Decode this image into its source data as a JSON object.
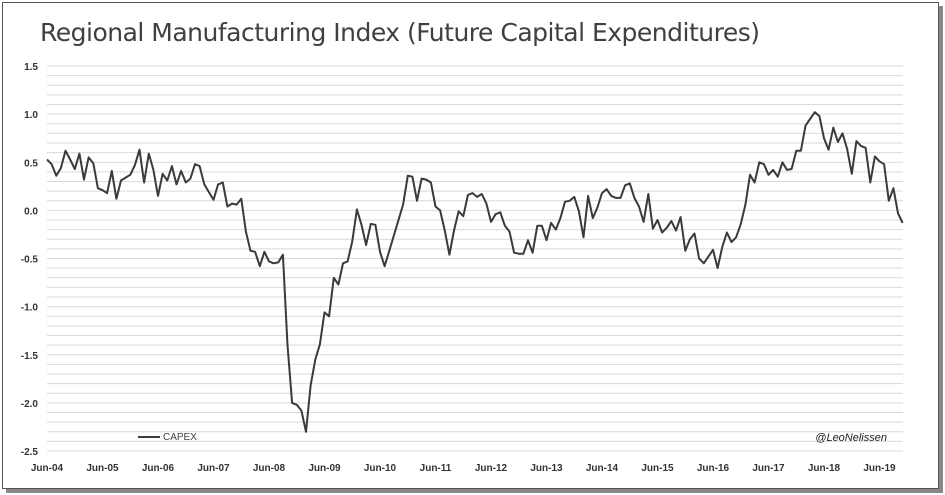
{
  "title": "Regional Manufacturing Index (Future Capital Expenditures)",
  "watermark": "@LeoNelissen",
  "colors": {
    "line": "#3a3a3a",
    "grid": "#d9d9d9"
  },
  "chart_data": {
    "type": "line",
    "title": "Regional Manufacturing Index (Future Capital Expenditures)",
    "xlabel": "",
    "ylabel": "",
    "ylim": [
      -2.5,
      1.5
    ],
    "yticks": [
      "1.5",
      "1.0",
      "0.5",
      "0.0",
      "-0.5",
      "-1.0",
      "-1.5",
      "-2.0",
      "-2.5"
    ],
    "ytick_values": [
      1.5,
      1.0,
      0.5,
      0.0,
      -0.5,
      -1.0,
      -1.5,
      -2.0,
      -2.5
    ],
    "xticks": [
      "Jun-04",
      "Jun-05",
      "Jun-06",
      "Jun-07",
      "Jun-08",
      "Jun-09",
      "Jun-10",
      "Jun-11",
      "Jun-12",
      "Jun-13",
      "Jun-14",
      "Jun-15",
      "Jun-16",
      "Jun-17",
      "Jun-18",
      "Jun-19"
    ],
    "grid": true,
    "legend": "bottom-left",
    "x_start": "Jun-04",
    "series": [
      {
        "name": "CAPEX",
        "values": [
          0.53,
          0.48,
          0.36,
          0.44,
          0.62,
          0.53,
          0.43,
          0.59,
          0.32,
          0.55,
          0.49,
          0.23,
          0.21,
          0.18,
          0.41,
          0.12,
          0.31,
          0.34,
          0.37,
          0.47,
          0.63,
          0.29,
          0.59,
          0.42,
          0.15,
          0.38,
          0.31,
          0.46,
          0.27,
          0.41,
          0.29,
          0.33,
          0.48,
          0.46,
          0.27,
          0.19,
          0.11,
          0.27,
          0.29,
          0.04,
          0.07,
          0.06,
          0.12,
          -0.22,
          -0.42,
          -0.43,
          -0.58,
          -0.43,
          -0.53,
          -0.55,
          -0.54,
          -0.46,
          -1.4,
          -2.0,
          -2.02,
          -2.08,
          -2.3,
          -1.82,
          -1.55,
          -1.39,
          -1.06,
          -1.1,
          -0.7,
          -0.77,
          -0.55,
          -0.53,
          -0.32,
          0.01,
          -0.15,
          -0.36,
          -0.14,
          -0.15,
          -0.43,
          -0.58,
          -0.42,
          -0.26,
          -0.1,
          0.06,
          0.36,
          0.35,
          0.1,
          0.33,
          0.32,
          0.29,
          0.04,
          0.0,
          -0.21,
          -0.46,
          -0.21,
          -0.01,
          -0.06,
          0.16,
          0.18,
          0.14,
          0.17,
          0.07,
          -0.12,
          -0.04,
          -0.02,
          -0.16,
          -0.22,
          -0.44,
          -0.45,
          -0.45,
          -0.31,
          -0.44,
          -0.16,
          -0.16,
          -0.31,
          -0.13,
          -0.2,
          -0.08,
          0.09,
          0.1,
          0.14,
          -0.01,
          -0.28,
          0.15,
          -0.08,
          0.03,
          0.18,
          0.22,
          0.15,
          0.13,
          0.13,
          0.26,
          0.28,
          0.13,
          0.04,
          -0.12,
          0.17,
          -0.19,
          -0.1,
          -0.23,
          -0.18,
          -0.11,
          -0.21,
          -0.07,
          -0.42,
          -0.3,
          -0.24,
          -0.5,
          -0.55,
          -0.48,
          -0.41,
          -0.6,
          -0.38,
          -0.23,
          -0.33,
          -0.28,
          -0.14,
          0.06,
          0.37,
          0.29,
          0.5,
          0.48,
          0.37,
          0.42,
          0.35,
          0.5,
          0.42,
          0.43,
          0.62,
          0.62,
          0.88,
          0.95,
          1.02,
          0.98,
          0.75,
          0.63,
          0.86,
          0.71,
          0.8,
          0.64,
          0.38,
          0.72,
          0.67,
          0.65,
          0.29,
          0.56,
          0.51,
          0.48,
          0.1,
          0.23,
          -0.03,
          -0.13
        ]
      }
    ]
  }
}
